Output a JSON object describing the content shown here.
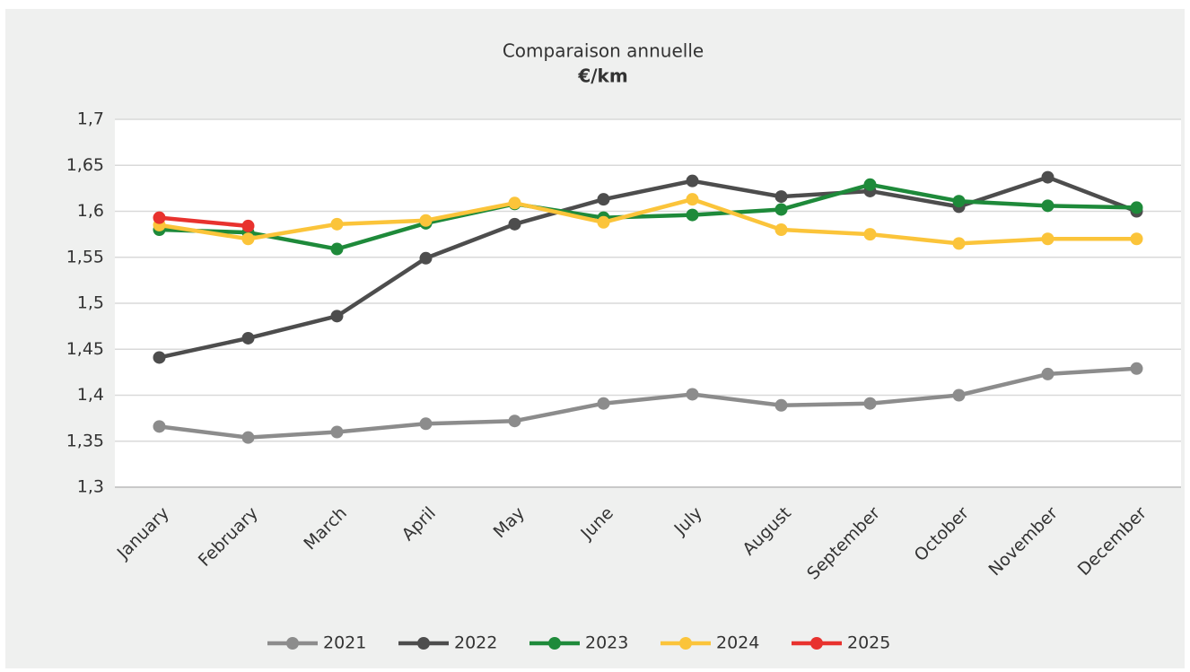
{
  "chart_data": {
    "type": "line",
    "title": "Comparaison annuelle",
    "subtitle": "€/km",
    "categories": [
      "January",
      "February",
      "March",
      "April",
      "May",
      "June",
      "July",
      "August",
      "September",
      "October",
      "November",
      "December"
    ],
    "series": [
      {
        "name": "2021",
        "color": "#8c8c8c",
        "values": [
          1.366,
          1.354,
          1.36,
          1.369,
          1.372,
          1.391,
          1.401,
          1.389,
          1.391,
          1.4,
          1.423,
          1.429
        ]
      },
      {
        "name": "2022",
        "color": "#4d4d4d",
        "values": [
          1.441,
          1.462,
          1.486,
          1.549,
          1.586,
          1.613,
          1.633,
          1.616,
          1.622,
          1.605,
          1.637,
          1.6
        ]
      },
      {
        "name": "2023",
        "color": "#1e8a3a",
        "values": [
          1.58,
          1.577,
          1.559,
          1.587,
          1.608,
          1.593,
          1.596,
          1.602,
          1.629,
          1.611,
          1.606,
          1.604
        ]
      },
      {
        "name": "2024",
        "color": "#fbc43a",
        "values": [
          1.585,
          1.57,
          1.586,
          1.59,
          1.609,
          1.588,
          1.613,
          1.58,
          1.575,
          1.565,
          1.57,
          1.57
        ]
      },
      {
        "name": "2025",
        "color": "#e8322e",
        "values": [
          1.593,
          1.584,
          null,
          null,
          null,
          null,
          null,
          null,
          null,
          null,
          null,
          null
        ]
      }
    ],
    "ylim": [
      1.3,
      1.7
    ],
    "yticks": [
      {
        "value": 1.3,
        "label": "1,3"
      },
      {
        "value": 1.35,
        "label": "1,35"
      },
      {
        "value": 1.4,
        "label": "1,4"
      },
      {
        "value": 1.45,
        "label": "1,45"
      },
      {
        "value": 1.5,
        "label": "1,5"
      },
      {
        "value": 1.55,
        "label": "1,55"
      },
      {
        "value": 1.6,
        "label": "1,6"
      },
      {
        "value": 1.65,
        "label": "1,65"
      },
      {
        "value": 1.7,
        "label": "1,7"
      }
    ],
    "grid": true,
    "legend": "bottom"
  }
}
